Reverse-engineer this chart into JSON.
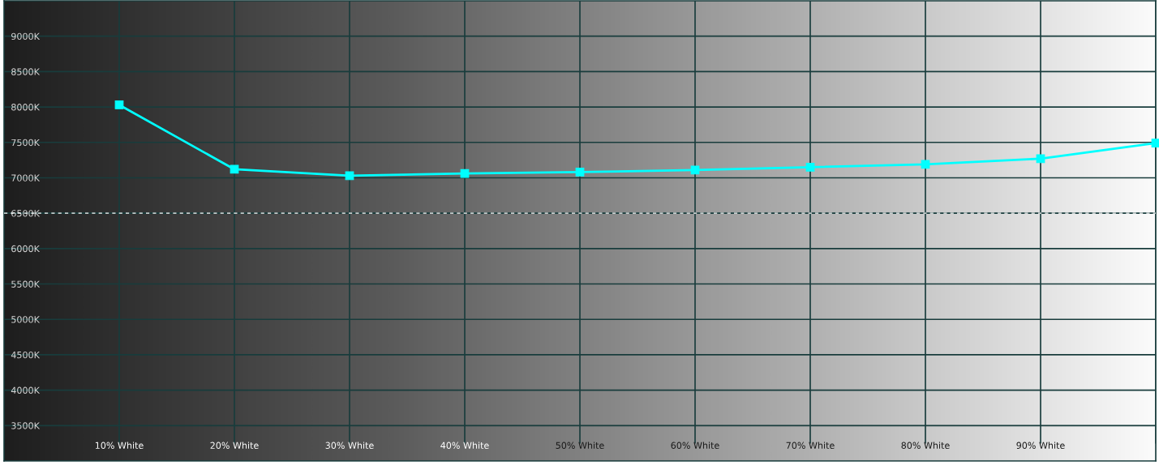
{
  "chart_data": {
    "type": "line",
    "x": [
      10,
      20,
      30,
      40,
      50,
      60,
      70,
      80,
      90,
      100
    ],
    "series": [
      {
        "color": "#00ffff",
        "values": [
          8030,
          7120,
          7030,
          7060,
          7080,
          7110,
          7150,
          7190,
          7270,
          7490
        ]
      }
    ],
    "marker": "square",
    "line_style": "solid",
    "xlim": [
      0,
      100
    ],
    "ylim": [
      3000,
      9500
    ],
    "xticks": [
      {
        "value": 10,
        "label": "10% White"
      },
      {
        "value": 20,
        "label": "20% White"
      },
      {
        "value": 30,
        "label": "30% White"
      },
      {
        "value": 40,
        "label": "40% White"
      },
      {
        "value": 50,
        "label": "50% White"
      },
      {
        "value": 60,
        "label": "60% White"
      },
      {
        "value": 70,
        "label": "70% White"
      },
      {
        "value": 80,
        "label": "80% White"
      },
      {
        "value": 90,
        "label": "90% White"
      },
      {
        "value": 100,
        "label": null
      }
    ],
    "yticks": [
      {
        "value": 3500,
        "label": "3500K"
      },
      {
        "value": 4000,
        "label": "4000K"
      },
      {
        "value": 4500,
        "label": "4500K"
      },
      {
        "value": 5000,
        "label": "5000K"
      },
      {
        "value": 5500,
        "label": "5500K"
      },
      {
        "value": 6000,
        "label": "6000K"
      },
      {
        "value": 6500,
        "label": "6500K"
      },
      {
        "value": 7000,
        "label": "7000K"
      },
      {
        "value": 7500,
        "label": "7500K"
      },
      {
        "value": 8000,
        "label": "8000K"
      },
      {
        "value": 8500,
        "label": "8500K"
      },
      {
        "value": 9000,
        "label": "9000K"
      }
    ],
    "grid": true,
    "ref_lines": [
      {
        "axis": "y",
        "value": 6500,
        "color": "#ffffff",
        "line_style": "dashed"
      }
    ]
  }
}
